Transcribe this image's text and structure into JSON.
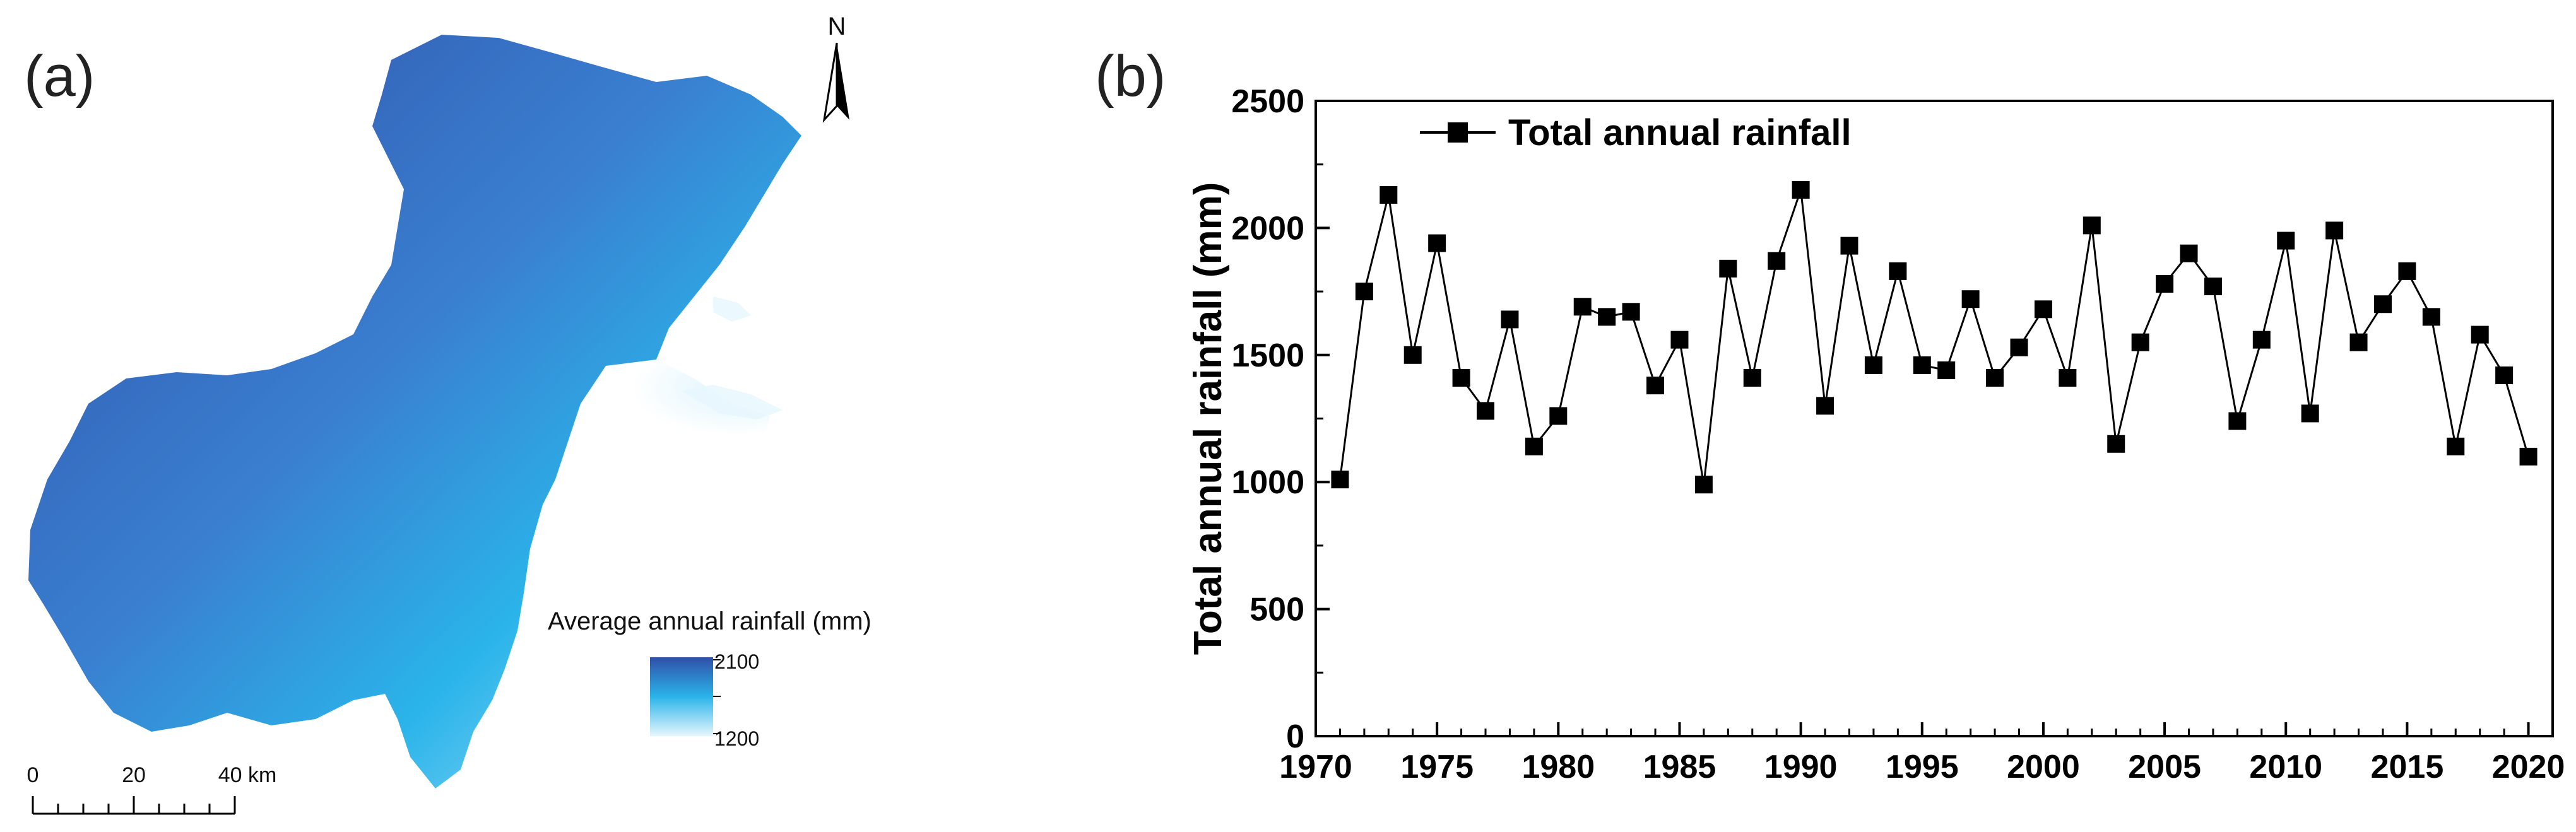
{
  "panel_a": {
    "label": "(a)",
    "north_label": "N",
    "legend_title": "Average annual rainfall (mm)",
    "legend_max": "2100",
    "legend_min": "1200",
    "scale_ticks": [
      "0",
      "20",
      "40 km"
    ],
    "colors": {
      "high": "#2f4fa8",
      "mid": "#2ab4ea",
      "low": "#e6f6fc"
    }
  },
  "panel_b": {
    "label": "(b)"
  },
  "chart_data": {
    "type": "line",
    "title": "",
    "xlabel": "",
    "ylabel": "Total annual rainfall (mm)",
    "xlim": [
      1970,
      2021
    ],
    "ylim": [
      0,
      2500
    ],
    "x_ticks": [
      1970,
      1975,
      1980,
      1985,
      1990,
      1995,
      2000,
      2005,
      2010,
      2015,
      2020
    ],
    "y_ticks": [
      0,
      500,
      1000,
      1500,
      2000,
      2500
    ],
    "grid": false,
    "legend_position": "top-left",
    "x": [
      1971,
      1972,
      1973,
      1974,
      1975,
      1976,
      1977,
      1978,
      1979,
      1980,
      1981,
      1982,
      1983,
      1984,
      1985,
      1986,
      1987,
      1988,
      1989,
      1990,
      1991,
      1992,
      1993,
      1994,
      1995,
      1996,
      1997,
      1998,
      1999,
      2000,
      2001,
      2002,
      2003,
      2004,
      2005,
      2006,
      2007,
      2008,
      2009,
      2010,
      2011,
      2012,
      2013,
      2014,
      2015,
      2016,
      2017,
      2018,
      2019,
      2020
    ],
    "series": [
      {
        "name": "Total annual rainfall",
        "color": "#000000",
        "marker": "square",
        "values": [
          1010,
          1750,
          2130,
          1500,
          1940,
          1410,
          1280,
          1640,
          1140,
          1260,
          1690,
          1650,
          1670,
          1380,
          1560,
          990,
          1840,
          1410,
          1870,
          2150,
          1300,
          1930,
          1460,
          1830,
          1460,
          1440,
          1720,
          1410,
          1530,
          1680,
          1410,
          2010,
          1150,
          1550,
          1780,
          1900,
          1770,
          1240,
          1560,
          1950,
          1270,
          1990,
          1550,
          1700,
          1830,
          1650,
          1140,
          1580,
          1420,
          1100
        ]
      }
    ]
  }
}
